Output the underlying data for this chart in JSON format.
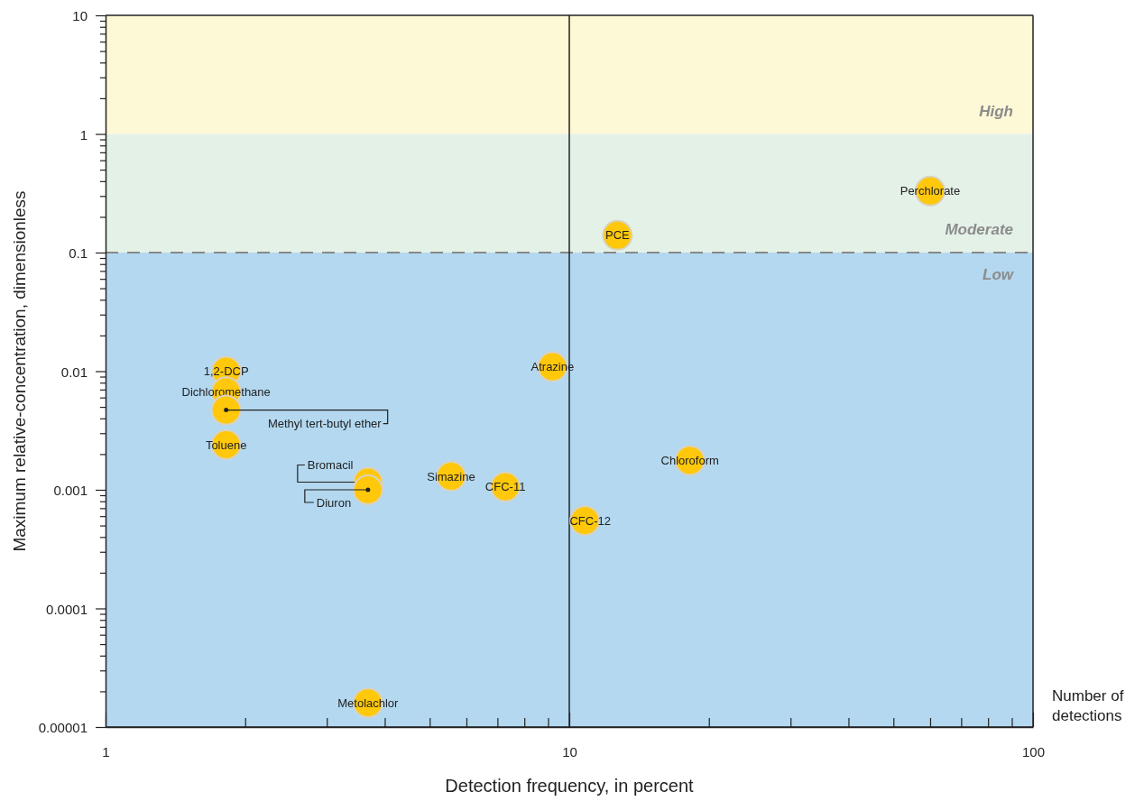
{
  "chart_data": {
    "type": "scatter",
    "xlabel": "Detection frequency, in percent",
    "ylabel": "Maximum relative-concentration, dimensionless",
    "log": "xy",
    "grid": false,
    "marker": "circle",
    "xlim": [
      1,
      100
    ],
    "ylim": [
      1e-05,
      10
    ],
    "xticks": [
      1,
      {
        "value": 2,
        "label": null
      },
      {
        "value": 3,
        "label": null
      },
      {
        "value": 4,
        "label": null
      },
      {
        "value": 5,
        "label": null
      },
      {
        "value": 6,
        "label": null
      },
      {
        "value": 7,
        "label": null
      },
      {
        "value": 8,
        "label": null
      },
      {
        "value": 9,
        "label": null
      },
      10,
      {
        "value": 20,
        "label": null
      },
      {
        "value": 30,
        "label": null
      },
      {
        "value": 40,
        "label": null
      },
      {
        "value": 50,
        "label": null
      },
      {
        "value": 60,
        "label": null
      },
      {
        "value": 70,
        "label": null
      },
      {
        "value": 80,
        "label": null
      },
      {
        "value": 90,
        "label": null
      },
      100
    ],
    "yticks": [
      {
        "value": 1e-05,
        "label": "0.00001"
      },
      {
        "value": 2e-05,
        "label": null
      },
      {
        "value": 3e-05,
        "label": null
      },
      {
        "value": 4e-05,
        "label": null
      },
      {
        "value": 5e-05,
        "label": null
      },
      {
        "value": 6e-05,
        "label": null
      },
      {
        "value": 7e-05,
        "label": null
      },
      {
        "value": 8e-05,
        "label": null
      },
      {
        "value": 9e-05,
        "label": null
      },
      {
        "value": 0.0001,
        "label": "0.0001"
      },
      {
        "value": 0.0002,
        "label": null
      },
      {
        "value": 0.0003,
        "label": null
      },
      {
        "value": 0.0004,
        "label": null
      },
      {
        "value": 0.0005,
        "label": null
      },
      {
        "value": 0.0006,
        "label": null
      },
      {
        "value": 0.0007,
        "label": null
      },
      {
        "value": 0.0008,
        "label": null
      },
      {
        "value": 0.0009,
        "label": null
      },
      {
        "value": 0.001,
        "label": "0.001"
      },
      {
        "value": 0.002,
        "label": null
      },
      {
        "value": 0.003,
        "label": null
      },
      {
        "value": 0.004,
        "label": null
      },
      {
        "value": 0.005,
        "label": null
      },
      {
        "value": 0.006,
        "label": null
      },
      {
        "value": 0.007,
        "label": null
      },
      {
        "value": 0.008,
        "label": null
      },
      {
        "value": 0.009,
        "label": null
      },
      {
        "value": 0.01,
        "label": "0.01"
      },
      {
        "value": 0.02,
        "label": null
      },
      {
        "value": 0.03,
        "label": null
      },
      {
        "value": 0.04,
        "label": null
      },
      {
        "value": 0.05,
        "label": null
      },
      {
        "value": 0.06,
        "label": null
      },
      {
        "value": 0.07,
        "label": null
      },
      {
        "value": 0.08,
        "label": null
      },
      {
        "value": 0.09,
        "label": null
      },
      {
        "value": 0.1,
        "label": "0.1"
      },
      {
        "value": 0.2,
        "label": null
      },
      {
        "value": 0.3,
        "label": null
      },
      {
        "value": 0.4,
        "label": null
      },
      {
        "value": 0.5,
        "label": null
      },
      {
        "value": 0.6,
        "label": null
      },
      {
        "value": 0.7,
        "label": null
      },
      {
        "value": 0.8,
        "label": null
      },
      {
        "value": 0.9,
        "label": null
      },
      {
        "value": 1,
        "label": "1"
      },
      {
        "value": 2,
        "label": null
      },
      {
        "value": 3,
        "label": null
      },
      {
        "value": 4,
        "label": null
      },
      {
        "value": 5,
        "label": null
      },
      {
        "value": 6,
        "label": null
      },
      {
        "value": 7,
        "label": null
      },
      {
        "value": 8,
        "label": null
      },
      {
        "value": 9,
        "label": null
      },
      {
        "value": 10,
        "label": "10"
      }
    ],
    "bands": [
      {
        "axis": "y",
        "from": 1,
        "to": 10,
        "label": "High",
        "color": "#fdf8d6"
      },
      {
        "axis": "y",
        "from": 0.1,
        "to": 1,
        "label": "Moderate",
        "color": "#e4f1e7"
      },
      {
        "axis": "y",
        "from": 1e-05,
        "to": 0.1,
        "label": "Low",
        "color": "#b3d8f0"
      }
    ],
    "ref_lines": [
      {
        "axis": "y",
        "value": 0.1,
        "color": "#888888",
        "line_style": "dashed"
      },
      {
        "axis": "x",
        "value": 10,
        "color": "#222222",
        "line_style": "solid"
      }
    ],
    "annotations": [
      "Number of detections"
    ],
    "series": [
      {
        "name": "1,2-DCP",
        "color": "#ffc80a",
        "x": [
          1.82
        ],
        "values": [
          0.01
        ]
      },
      {
        "name": "Dichloromethane",
        "color": "#ffc80a",
        "x": [
          1.82
        ],
        "values": [
          0.0067
        ]
      },
      {
        "name": "Methyl tert-butyl ether",
        "color": "#ffc80a",
        "x": [
          1.82
        ],
        "values": [
          0.0047
        ]
      },
      {
        "name": "Toluene",
        "color": "#ffc80a",
        "x": [
          1.82
        ],
        "values": [
          0.0024
        ]
      },
      {
        "name": "Bromacil",
        "color": "#ffc80a",
        "x": [
          3.68
        ],
        "values": [
          0.00116
        ]
      },
      {
        "name": "Diuron",
        "color": "#ffc80a",
        "x": [
          3.68
        ],
        "values": [
          0.001
        ]
      },
      {
        "name": "Simazine",
        "color": "#ffc80a",
        "x": [
          5.56
        ],
        "values": [
          0.0013
        ]
      },
      {
        "name": "CFC-11",
        "color": "#ffc80a",
        "x": [
          7.28
        ],
        "values": [
          0.00106
        ]
      },
      {
        "name": "Atrazine",
        "color": "#ffc80a",
        "x": [
          9.2
        ],
        "values": [
          0.0109
        ]
      },
      {
        "name": "CFC-12",
        "color": "#ffc80a",
        "x": [
          10.8
        ],
        "values": [
          0.00055
        ]
      },
      {
        "name": "Chloroform",
        "color": "#ffc80a",
        "x": [
          18.2
        ],
        "values": [
          0.00177
        ]
      },
      {
        "name": "PCE",
        "color": "#ffc80a",
        "x": [
          12.7
        ],
        "values": [
          0.14
        ]
      },
      {
        "name": "Perchlorate",
        "color": "#ffc80a",
        "x": [
          60
        ],
        "values": [
          0.33
        ]
      },
      {
        "name": "Metolachlor",
        "color": "#ffc80a",
        "x": [
          3.68
        ],
        "values": [
          1.6e-05
        ]
      }
    ]
  }
}
